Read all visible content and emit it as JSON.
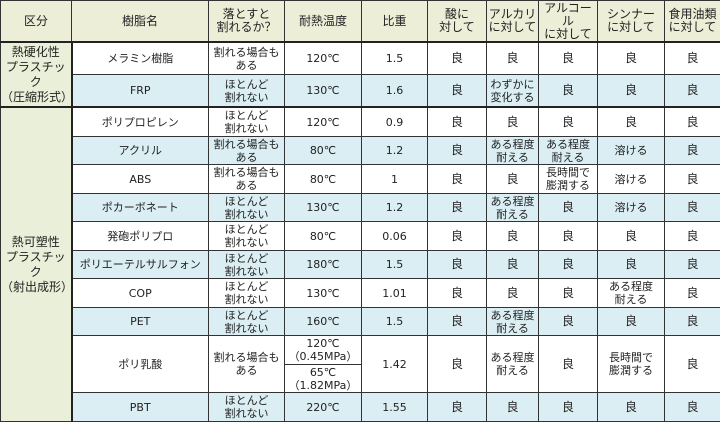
{
  "headers": [
    "区分",
    "樹脂名",
    "落とすと\n割れるか？",
    "耐熱温度",
    "比重",
    "酸に\n対して",
    "アルカリ\nに対して",
    "アルコール\nに対して",
    "シンナー\nに対して",
    "食用油類\nに対して"
  ],
  "categories": [
    "熱硬化性\nプラスチック\n（圧縮形式）",
    "熱可塑性\nプラスチック\n（射出成形）"
  ],
  "rows": [
    {
      "name": "メラミン樹脂",
      "drop": "割れる場合も\nある",
      "heat": "120℃",
      "sg": "1.5",
      "acid": "良",
      "alkali": "良",
      "alcohol": "良",
      "thinner": "良",
      "oil": "良"
    },
    {
      "name": "FRP",
      "drop": "ほとんど\n割れない",
      "heat": "130℃",
      "sg": "1.6",
      "acid": "良",
      "alkali": "わずかに\n変化する",
      "alcohol": "良",
      "thinner": "良",
      "oil": "良"
    },
    {
      "name": "ポリプロピレン",
      "drop": "ほとんど\n割れない",
      "heat": "120℃",
      "sg": "0.9",
      "acid": "良",
      "alkali": "良",
      "alcohol": "良",
      "thinner": "良",
      "oil": "良"
    },
    {
      "name": "アクリル",
      "drop": "割れる場合も\nある",
      "heat": "80℃",
      "sg": "1.2",
      "acid": "良",
      "alkali": "ある程度\n耐える",
      "alcohol": "ある程度\n耐える",
      "thinner": "溶ける",
      "oil": "良"
    },
    {
      "name": "ABS",
      "drop": "割れる場合も\nある",
      "heat": "80℃",
      "sg": "1",
      "acid": "良",
      "alkali": "良",
      "alcohol": "長時間で\n膨潤する",
      "thinner": "溶ける",
      "oil": "良"
    },
    {
      "name": "ポカーボネート",
      "drop": "ほとんど\n割れない",
      "heat": "130℃",
      "sg": "1.2",
      "acid": "良",
      "alkali": "ある程度\n耐える",
      "alcohol": "良",
      "thinner": "溶ける",
      "oil": "良"
    },
    {
      "name": "発砲ポリプロ",
      "drop": "ほとんど\n割れない",
      "heat": "80℃",
      "sg": "0.06",
      "acid": "良",
      "alkali": "良",
      "alcohol": "良",
      "thinner": "良",
      "oil": "良"
    },
    {
      "name": "ポリエーテルサルフォン",
      "drop": "ほとんど\n割れない",
      "heat": "180℃",
      "sg": "1.5",
      "acid": "良",
      "alkali": "良",
      "alcohol": "良",
      "thinner": "良",
      "oil": "良"
    },
    {
      "name": "COP",
      "drop": "ほとんど\n割れない",
      "heat": "130℃",
      "sg": "1.01",
      "acid": "良",
      "alkali": "良",
      "alcohol": "良",
      "thinner": "ある程度\n耐える",
      "oil": "良"
    },
    {
      "name": "PET",
      "drop": "ほとんど\n割れない",
      "heat": "160℃",
      "sg": "1.5",
      "acid": "良",
      "alkali": "ある程度\n耐える",
      "alcohol": "良",
      "thinner": "良",
      "oil": "良"
    },
    {
      "name": "ポリ乳酸",
      "drop": "割れる場合も\nある",
      "heat": "120℃\n（0.45MPa）",
      "heat2": "65℃\n（1.82MPa）",
      "sg": "1.42",
      "acid": "良",
      "alkali": "ある程度\n耐える",
      "alcohol": "良",
      "thinner": "長時間で\n膨潤する",
      "oil": "良"
    },
    {
      "name": "PBT",
      "drop": "ほとんど\n割れない",
      "heat": "220℃",
      "sg": "1.55",
      "acid": "良",
      "alkali": "良",
      "alcohol": "良",
      "thinner": "良",
      "oil": "良"
    }
  ]
}
